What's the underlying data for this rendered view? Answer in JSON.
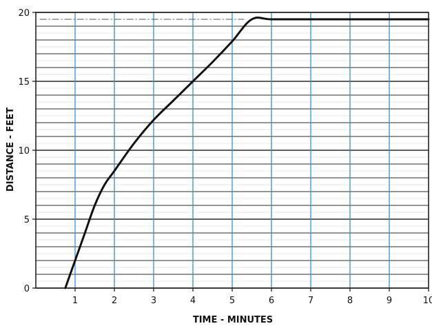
{
  "chart_data": {
    "type": "line",
    "title": "",
    "xlabel": "TIME - MINUTES",
    "ylabel": "DISTANCE - FEET",
    "xlim": [
      0,
      10
    ],
    "ylim": [
      0,
      20
    ],
    "x_ticks": [
      "1",
      "2",
      "3",
      "4",
      "5",
      "6",
      "7",
      "8",
      "9",
      "10"
    ],
    "y_ticks": [
      "0",
      "5",
      "10",
      "15",
      "20"
    ],
    "grid": true,
    "legend": "none",
    "colors": {
      "line": "#111111",
      "grid_vertical": "#3a8ec9",
      "grid_horizontal": "#2a2a2a",
      "grid_light": "#7fb6de",
      "frame": "#222222"
    },
    "series": [
      {
        "x": [
          0.75,
          1.0,
          1.25,
          1.5,
          1.75,
          2.0,
          2.5,
          3.0,
          3.5,
          4.0,
          4.5,
          5.0,
          5.5,
          6.0,
          7.0,
          8.0,
          9.0,
          10.0
        ],
        "values": [
          0.0,
          2.0,
          4.0,
          6.0,
          7.5,
          8.5,
          10.5,
          12.2,
          13.6,
          15.0,
          16.4,
          17.9,
          19.5,
          19.5,
          19.5,
          19.5,
          19.5,
          19.5
        ]
      }
    ],
    "reference_line": {
      "y": 19.5,
      "x_range": [
        0.1,
        5.3
      ]
    }
  }
}
